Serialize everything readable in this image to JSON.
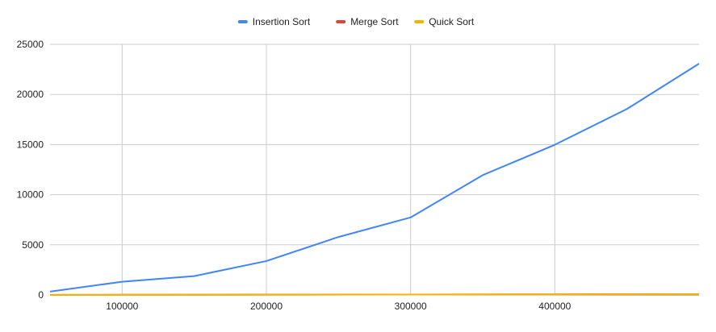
{
  "chart_data": {
    "type": "line",
    "title": "",
    "xlabel": "",
    "ylabel": "",
    "x": [
      50000,
      100000,
      150000,
      200000,
      250000,
      300000,
      350000,
      400000,
      450000,
      500000
    ],
    "series": [
      {
        "name": "Insertion Sort",
        "color": "#4285f4",
        "values": [
          330,
          1320,
          1880,
          3380,
          5780,
          7730,
          11950,
          14980,
          18550,
          23070
        ]
      },
      {
        "name": "Merge Sort",
        "color": "#db4437",
        "values": [
          8,
          15,
          22,
          30,
          38,
          45,
          55,
          60,
          68,
          75
        ]
      },
      {
        "name": "Quick Sort",
        "color": "#f4b400",
        "values": [
          6,
          12,
          18,
          25,
          32,
          40,
          48,
          55,
          62,
          70
        ]
      }
    ],
    "xlim": [
      50000,
      500000
    ],
    "ylim": [
      0,
      25000
    ],
    "x_ticks": [
      "100000",
      "200000",
      "300000",
      "400000"
    ],
    "y_ticks": [
      "0",
      "5000",
      "10000",
      "15000",
      "20000",
      "25000"
    ],
    "grid": true,
    "legend_position": "top-center"
  }
}
